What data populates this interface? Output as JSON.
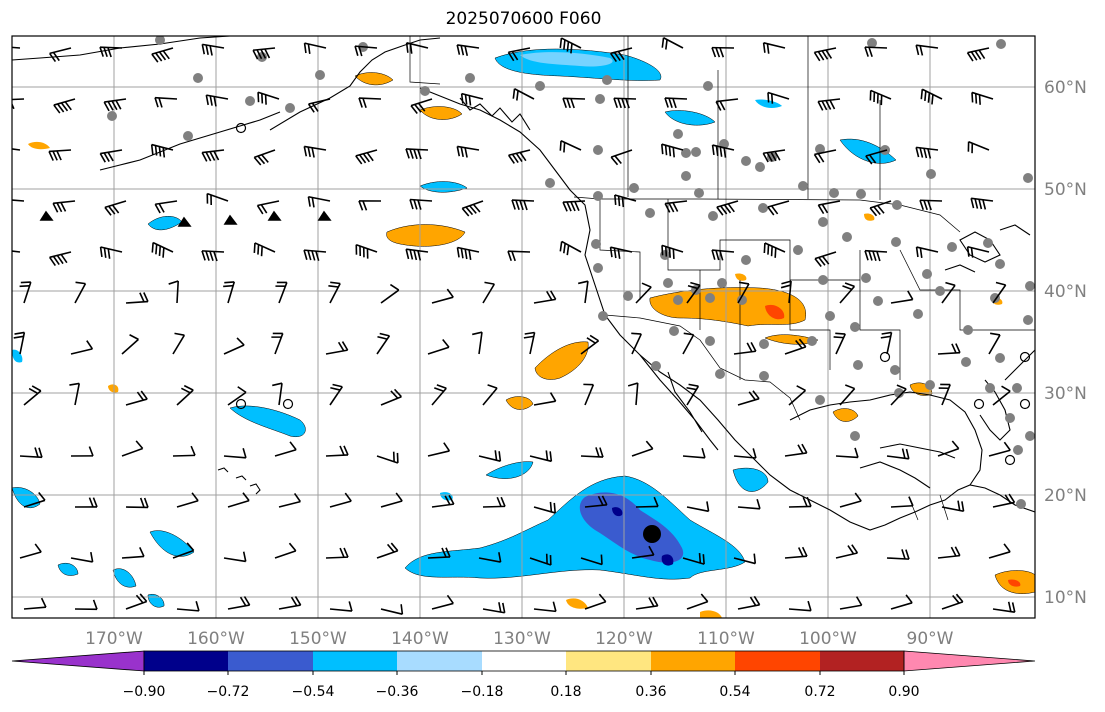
{
  "title": "2025070600 F060",
  "map": {
    "lon_labels": [
      "170°W",
      "160°W",
      "150°W",
      "140°W",
      "130°W",
      "120°W",
      "110°W",
      "100°W",
      "90°W"
    ],
    "lat_labels": [
      "60°N",
      "50°N",
      "40°N",
      "30°N",
      "20°N",
      "10°N"
    ],
    "lon_range": [
      -178,
      -78
    ],
    "lat_range": [
      7.5,
      64.5
    ]
  },
  "colorbar": {
    "colors": [
      "#9932cc",
      "#00008b",
      "#3a5bcf",
      "#00bfff",
      "#a8dcff",
      "#ffffff",
      "#ffe680",
      "#ffa500",
      "#ff4500",
      "#b22222",
      "#ff88b0"
    ],
    "tick_labels": [
      "−0.90",
      "−0.72",
      "−0.54",
      "−0.36",
      "−0.18",
      "0.18",
      "0.36",
      "0.54",
      "0.72",
      "0.90"
    ],
    "extend": "both"
  }
}
